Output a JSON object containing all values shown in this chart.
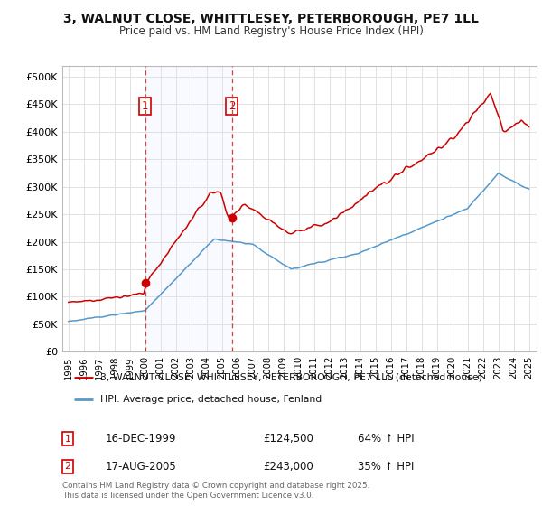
{
  "title1": "3, WALNUT CLOSE, WHITTLESEY, PETERBOROUGH, PE7 1LL",
  "title2": "Price paid vs. HM Land Registry's House Price Index (HPI)",
  "legend_line1": "3, WALNUT CLOSE, WHITTLESEY, PETERBOROUGH, PE7 1LL (detached house)",
  "legend_line2": "HPI: Average price, detached house, Fenland",
  "annotation1_date": "16-DEC-1999",
  "annotation1_price": "£124,500",
  "annotation1_hpi": "64% ↑ HPI",
  "annotation2_date": "17-AUG-2005",
  "annotation2_price": "£243,000",
  "annotation2_hpi": "35% ↑ HPI",
  "footnote": "Contains HM Land Registry data © Crown copyright and database right 2025.\nThis data is licensed under the Open Government Licence v3.0.",
  "red_color": "#cc0000",
  "blue_color": "#5599cc",
  "vline_color": "#cc4444",
  "background_color": "#ffffff",
  "grid_color": "#dddddd",
  "ylim": [
    0,
    520000
  ],
  "yticks": [
    0,
    50000,
    100000,
    150000,
    200000,
    250000,
    300000,
    350000,
    400000,
    450000,
    500000
  ],
  "ytick_labels": [
    "£0",
    "£50K",
    "£100K",
    "£150K",
    "£200K",
    "£250K",
    "£300K",
    "£350K",
    "£400K",
    "£450K",
    "£500K"
  ],
  "xlim_left": 1994.6,
  "xlim_right": 2025.5,
  "vline1_x": 2000.0,
  "vline2_x": 2005.65,
  "sale1_x": 2000.0,
  "sale1_y": 124500,
  "sale2_x": 2005.65,
  "sale2_y": 243000
}
